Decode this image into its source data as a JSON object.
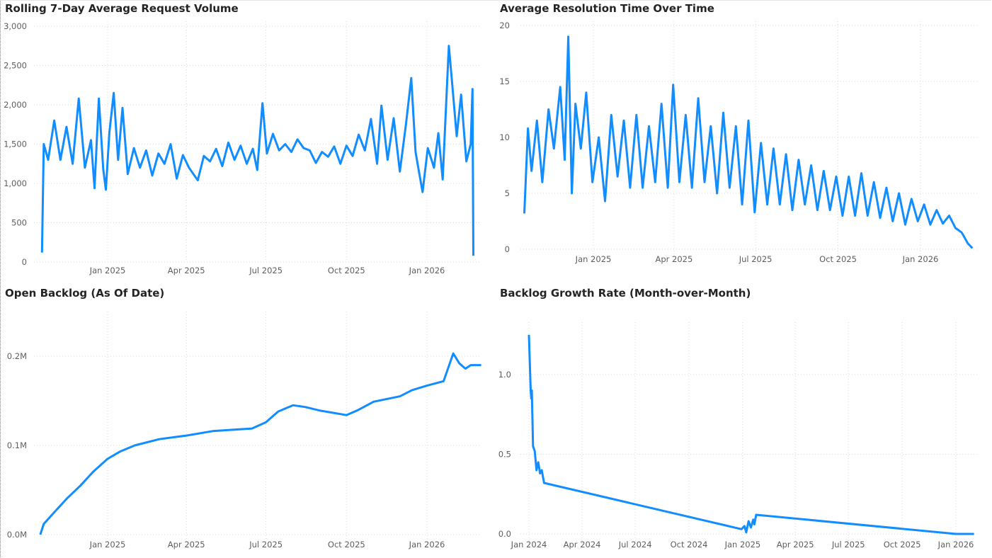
{
  "line_color": "#118DFF",
  "grid_color": "#D9D9D9",
  "chart_data": [
    {
      "type": "line",
      "title": "Rolling 7-Day Average Request Volume",
      "xlabel": "",
      "ylabel": "",
      "ylim": [
        0,
        3000
      ],
      "y_ticks": [
        {
          "value": 0,
          "label": "0"
        },
        {
          "value": 500,
          "label": "500"
        },
        {
          "value": 1000,
          "label": "1,000"
        },
        {
          "value": 1500,
          "label": "1,500"
        },
        {
          "value": 2000,
          "label": "2,000"
        },
        {
          "value": 2500,
          "label": "2,500"
        },
        {
          "value": 3000,
          "label": "3,000"
        }
      ],
      "x_ticks": [
        {
          "date": "2025-01-01",
          "label": "Jan 2025"
        },
        {
          "date": "2025-04-01",
          "label": "Apr 2025"
        },
        {
          "date": "2025-07-01",
          "label": "Jul 2025"
        },
        {
          "date": "2025-10-01",
          "label": "Oct 2025"
        },
        {
          "date": "2026-01-01",
          "label": "Jan 2026"
        }
      ],
      "grid": true,
      "points": [
        [
          "2024-10-18",
          120
        ],
        [
          "2024-10-20",
          1500
        ],
        [
          "2024-10-25",
          1300
        ],
        [
          "2024-11-01",
          1800
        ],
        [
          "2024-11-08",
          1300
        ],
        [
          "2024-11-15",
          1720
        ],
        [
          "2024-11-22",
          1250
        ],
        [
          "2024-11-29",
          2080
        ],
        [
          "2024-12-06",
          1200
        ],
        [
          "2024-12-13",
          1550
        ],
        [
          "2024-12-17",
          940
        ],
        [
          "2024-12-22",
          2080
        ],
        [
          "2024-12-27",
          1180
        ],
        [
          "2024-12-30",
          920
        ],
        [
          "2025-01-03",
          1650
        ],
        [
          "2025-01-08",
          2150
        ],
        [
          "2025-01-13",
          1300
        ],
        [
          "2025-01-18",
          1960
        ],
        [
          "2025-01-24",
          1120
        ],
        [
          "2025-01-31",
          1450
        ],
        [
          "2025-02-07",
          1200
        ],
        [
          "2025-02-14",
          1420
        ],
        [
          "2025-02-21",
          1100
        ],
        [
          "2025-02-28",
          1380
        ],
        [
          "2025-03-07",
          1250
        ],
        [
          "2025-03-14",
          1500
        ],
        [
          "2025-03-21",
          1060
        ],
        [
          "2025-03-28",
          1360
        ],
        [
          "2025-04-04",
          1200
        ],
        [
          "2025-04-14",
          1040
        ],
        [
          "2025-04-21",
          1350
        ],
        [
          "2025-04-28",
          1280
        ],
        [
          "2025-05-05",
          1440
        ],
        [
          "2025-05-12",
          1220
        ],
        [
          "2025-05-19",
          1520
        ],
        [
          "2025-05-26",
          1300
        ],
        [
          "2025-06-02",
          1480
        ],
        [
          "2025-06-09",
          1250
        ],
        [
          "2025-06-16",
          1440
        ],
        [
          "2025-06-21",
          1170
        ],
        [
          "2025-06-27",
          2020
        ],
        [
          "2025-07-02",
          1380
        ],
        [
          "2025-07-09",
          1630
        ],
        [
          "2025-07-16",
          1420
        ],
        [
          "2025-07-23",
          1500
        ],
        [
          "2025-07-30",
          1400
        ],
        [
          "2025-08-06",
          1560
        ],
        [
          "2025-08-13",
          1450
        ],
        [
          "2025-08-20",
          1420
        ],
        [
          "2025-08-27",
          1260
        ],
        [
          "2025-09-03",
          1400
        ],
        [
          "2025-09-10",
          1340
        ],
        [
          "2025-09-17",
          1470
        ],
        [
          "2025-09-24",
          1250
        ],
        [
          "2025-10-01",
          1480
        ],
        [
          "2025-10-08",
          1350
        ],
        [
          "2025-10-15",
          1620
        ],
        [
          "2025-10-22",
          1420
        ],
        [
          "2025-10-29",
          1820
        ],
        [
          "2025-11-05",
          1250
        ],
        [
          "2025-11-10",
          1990
        ],
        [
          "2025-11-17",
          1300
        ],
        [
          "2025-11-24",
          1830
        ],
        [
          "2025-12-01",
          1150
        ],
        [
          "2025-12-08",
          1750
        ],
        [
          "2025-12-14",
          2340
        ],
        [
          "2025-12-19",
          1400
        ],
        [
          "2025-12-23",
          1140
        ],
        [
          "2025-12-27",
          890
        ],
        [
          "2026-01-02",
          1450
        ],
        [
          "2026-01-09",
          1200
        ],
        [
          "2026-01-14",
          1640
        ],
        [
          "2026-01-19",
          1050
        ],
        [
          "2026-01-22",
          1780
        ],
        [
          "2026-01-26",
          2750
        ],
        [
          "2026-01-30",
          2250
        ],
        [
          "2026-02-04",
          1600
        ],
        [
          "2026-02-09",
          2130
        ],
        [
          "2026-02-15",
          1280
        ],
        [
          "2026-02-20",
          1500
        ],
        [
          "2026-02-22",
          2200
        ],
        [
          "2026-02-23",
          80
        ]
      ]
    },
    {
      "type": "line",
      "title": "Average Resolution Time Over Time",
      "xlabel": "",
      "ylabel": "",
      "ylim": [
        0,
        20
      ],
      "y_ticks": [
        {
          "value": 0,
          "label": "0"
        },
        {
          "value": 5,
          "label": "5"
        },
        {
          "value": 10,
          "label": "10"
        },
        {
          "value": 15,
          "label": "15"
        },
        {
          "value": 20,
          "label": "20"
        }
      ],
      "x_ticks": [
        {
          "date": "2025-01-01",
          "label": "Jan 2025"
        },
        {
          "date": "2025-04-01",
          "label": "Apr 2025"
        },
        {
          "date": "2025-07-01",
          "label": "Jul 2025"
        },
        {
          "date": "2025-10-01",
          "label": "Oct 2025"
        },
        {
          "date": "2026-01-01",
          "label": "Jan 2026"
        }
      ],
      "grid": true,
      "points": [
        [
          "2024-10-16",
          3.2
        ],
        [
          "2024-10-20",
          10.8
        ],
        [
          "2024-10-24",
          7
        ],
        [
          "2024-10-30",
          11.5
        ],
        [
          "2024-11-05",
          6
        ],
        [
          "2024-11-12",
          12.5
        ],
        [
          "2024-11-18",
          9
        ],
        [
          "2024-11-25",
          14.5
        ],
        [
          "2024-11-30",
          8
        ],
        [
          "2024-12-04",
          19
        ],
        [
          "2024-12-08",
          5
        ],
        [
          "2024-12-12",
          13
        ],
        [
          "2024-12-18",
          9
        ],
        [
          "2024-12-24",
          14
        ],
        [
          "2024-12-31",
          6
        ],
        [
          "2025-01-07",
          10
        ],
        [
          "2025-01-14",
          4.3
        ],
        [
          "2025-01-21",
          12
        ],
        [
          "2025-01-28",
          6.5
        ],
        [
          "2025-02-04",
          11.5
        ],
        [
          "2025-02-11",
          5.5
        ],
        [
          "2025-02-18",
          12
        ],
        [
          "2025-02-25",
          5.5
        ],
        [
          "2025-03-04",
          11
        ],
        [
          "2025-03-11",
          6
        ],
        [
          "2025-03-18",
          13
        ],
        [
          "2025-03-25",
          5.5
        ],
        [
          "2025-03-31",
          14.7
        ],
        [
          "2025-04-07",
          6
        ],
        [
          "2025-04-14",
          12
        ],
        [
          "2025-04-21",
          5.5
        ],
        [
          "2025-04-28",
          13.5
        ],
        [
          "2025-05-05",
          6
        ],
        [
          "2025-05-12",
          11
        ],
        [
          "2025-05-19",
          5
        ],
        [
          "2025-05-26",
          12.2
        ],
        [
          "2025-06-02",
          5.5
        ],
        [
          "2025-06-09",
          11
        ],
        [
          "2025-06-16",
          4
        ],
        [
          "2025-06-23",
          11.5
        ],
        [
          "2025-06-30",
          3.3
        ],
        [
          "2025-07-07",
          9.5
        ],
        [
          "2025-07-14",
          4
        ],
        [
          "2025-07-21",
          9
        ],
        [
          "2025-07-28",
          4
        ],
        [
          "2025-08-04",
          8.5
        ],
        [
          "2025-08-11",
          3.5
        ],
        [
          "2025-08-18",
          8
        ],
        [
          "2025-08-25",
          4
        ],
        [
          "2025-09-01",
          7.5
        ],
        [
          "2025-09-08",
          3.5
        ],
        [
          "2025-09-15",
          7
        ],
        [
          "2025-09-22",
          3.5
        ],
        [
          "2025-09-29",
          6.5
        ],
        [
          "2025-10-06",
          3
        ],
        [
          "2025-10-13",
          6.5
        ],
        [
          "2025-10-20",
          3
        ],
        [
          "2025-10-27",
          6.8
        ],
        [
          "2025-11-03",
          3
        ],
        [
          "2025-11-10",
          6
        ],
        [
          "2025-11-17",
          2.8
        ],
        [
          "2025-11-24",
          5.5
        ],
        [
          "2025-12-01",
          2.5
        ],
        [
          "2025-12-08",
          5
        ],
        [
          "2025-12-15",
          2.2
        ],
        [
          "2025-12-22",
          4.5
        ],
        [
          "2025-12-29",
          2.5
        ],
        [
          "2026-01-05",
          4
        ],
        [
          "2026-01-12",
          2.2
        ],
        [
          "2026-01-19",
          3.5
        ],
        [
          "2026-01-26",
          2.3
        ],
        [
          "2026-02-02",
          3
        ],
        [
          "2026-02-09",
          1.9
        ],
        [
          "2026-02-16",
          1.5
        ],
        [
          "2026-02-23",
          0.5
        ],
        [
          "2026-02-28",
          0.1
        ]
      ]
    },
    {
      "type": "line",
      "title": "Open Backlog (As Of Date)",
      "xlabel": "",
      "ylabel": "",
      "ylim": [
        0,
        250000
      ],
      "y_ticks": [
        {
          "value": 0,
          "label": "0.0M"
        },
        {
          "value": 100000,
          "label": "0.1M"
        },
        {
          "value": 200000,
          "label": "0.2M"
        }
      ],
      "x_ticks": [
        {
          "date": "2025-01-01",
          "label": "Jan 2025"
        },
        {
          "date": "2025-04-01",
          "label": "Apr 2025"
        },
        {
          "date": "2025-07-01",
          "label": "Jul 2025"
        },
        {
          "date": "2025-10-01",
          "label": "Oct 2025"
        },
        {
          "date": "2026-01-01",
          "label": "Jan 2026"
        }
      ],
      "grid": true,
      "points": [
        [
          "2024-10-16",
          0
        ],
        [
          "2024-10-20",
          12000
        ],
        [
          "2024-11-01",
          25000
        ],
        [
          "2024-11-15",
          40000
        ],
        [
          "2024-12-01",
          55000
        ],
        [
          "2024-12-15",
          70000
        ],
        [
          "2025-01-01",
          85000
        ],
        [
          "2025-01-15",
          93000
        ],
        [
          "2025-02-01",
          100000
        ],
        [
          "2025-03-01",
          107000
        ],
        [
          "2025-04-01",
          111000
        ],
        [
          "2025-05-01",
          116000
        ],
        [
          "2025-06-01",
          118000
        ],
        [
          "2025-06-15",
          119000
        ],
        [
          "2025-07-01",
          126000
        ],
        [
          "2025-07-15",
          138000
        ],
        [
          "2025-08-01",
          145000
        ],
        [
          "2025-08-15",
          143000
        ],
        [
          "2025-09-01",
          139000
        ],
        [
          "2025-10-01",
          134000
        ],
        [
          "2025-10-15",
          140000
        ],
        [
          "2025-11-01",
          149000
        ],
        [
          "2025-12-01",
          155000
        ],
        [
          "2025-12-15",
          162000
        ],
        [
          "2026-01-01",
          167000
        ],
        [
          "2026-01-20",
          172000
        ],
        [
          "2026-01-31",
          203000
        ],
        [
          "2026-02-07",
          192000
        ],
        [
          "2026-02-14",
          186000
        ],
        [
          "2026-02-20",
          190000
        ],
        [
          "2026-03-04",
          190000
        ]
      ]
    },
    {
      "type": "line",
      "title": "Backlog Growth Rate (Month-over-Month)",
      "xlabel": "",
      "ylabel": "",
      "ylim": [
        0,
        1.3
      ],
      "y_ticks": [
        {
          "value": 0,
          "label": "0.0"
        },
        {
          "value": 0.5,
          "label": "0.5"
        },
        {
          "value": 1,
          "label": "1.0"
        }
      ],
      "x_ticks": [
        {
          "date": "2024-01-01",
          "label": "Jan 2024"
        },
        {
          "date": "2024-04-01",
          "label": "Apr 2024"
        },
        {
          "date": "2024-07-01",
          "label": "Jul 2024"
        },
        {
          "date": "2024-10-01",
          "label": "Oct 2024"
        },
        {
          "date": "2025-01-01",
          "label": "Jan 2025"
        },
        {
          "date": "2025-04-01",
          "label": "Apr 2025"
        },
        {
          "date": "2025-07-01",
          "label": "Jul 2025"
        },
        {
          "date": "2025-10-01",
          "label": "Oct 2025"
        },
        {
          "date": "2026-01-01",
          "label": "Jan 2026"
        }
      ],
      "grid": true,
      "points": [
        [
          "2024-01-01",
          1.25
        ],
        [
          "2024-01-04",
          0.9
        ],
        [
          "2024-01-05",
          0.85
        ],
        [
          "2024-01-06",
          0.9
        ],
        [
          "2024-01-08",
          0.55
        ],
        [
          "2024-01-11",
          0.52
        ],
        [
          "2024-01-14",
          0.4
        ],
        [
          "2024-01-17",
          0.45
        ],
        [
          "2024-01-20",
          0.38
        ],
        [
          "2024-01-23",
          0.4
        ],
        [
          "2024-01-27",
          0.32
        ],
        [
          "2024-12-30",
          0.03
        ],
        [
          "2025-01-04",
          0.05
        ],
        [
          "2025-01-07",
          0.01
        ],
        [
          "2025-01-11",
          0.08
        ],
        [
          "2025-01-15",
          0.04
        ],
        [
          "2025-01-19",
          0.09
        ],
        [
          "2025-01-21",
          0.06
        ],
        [
          "2025-01-24",
          0.12
        ],
        [
          "2026-01-01",
          0.0
        ],
        [
          "2026-02-01",
          0.0
        ]
      ]
    }
  ]
}
